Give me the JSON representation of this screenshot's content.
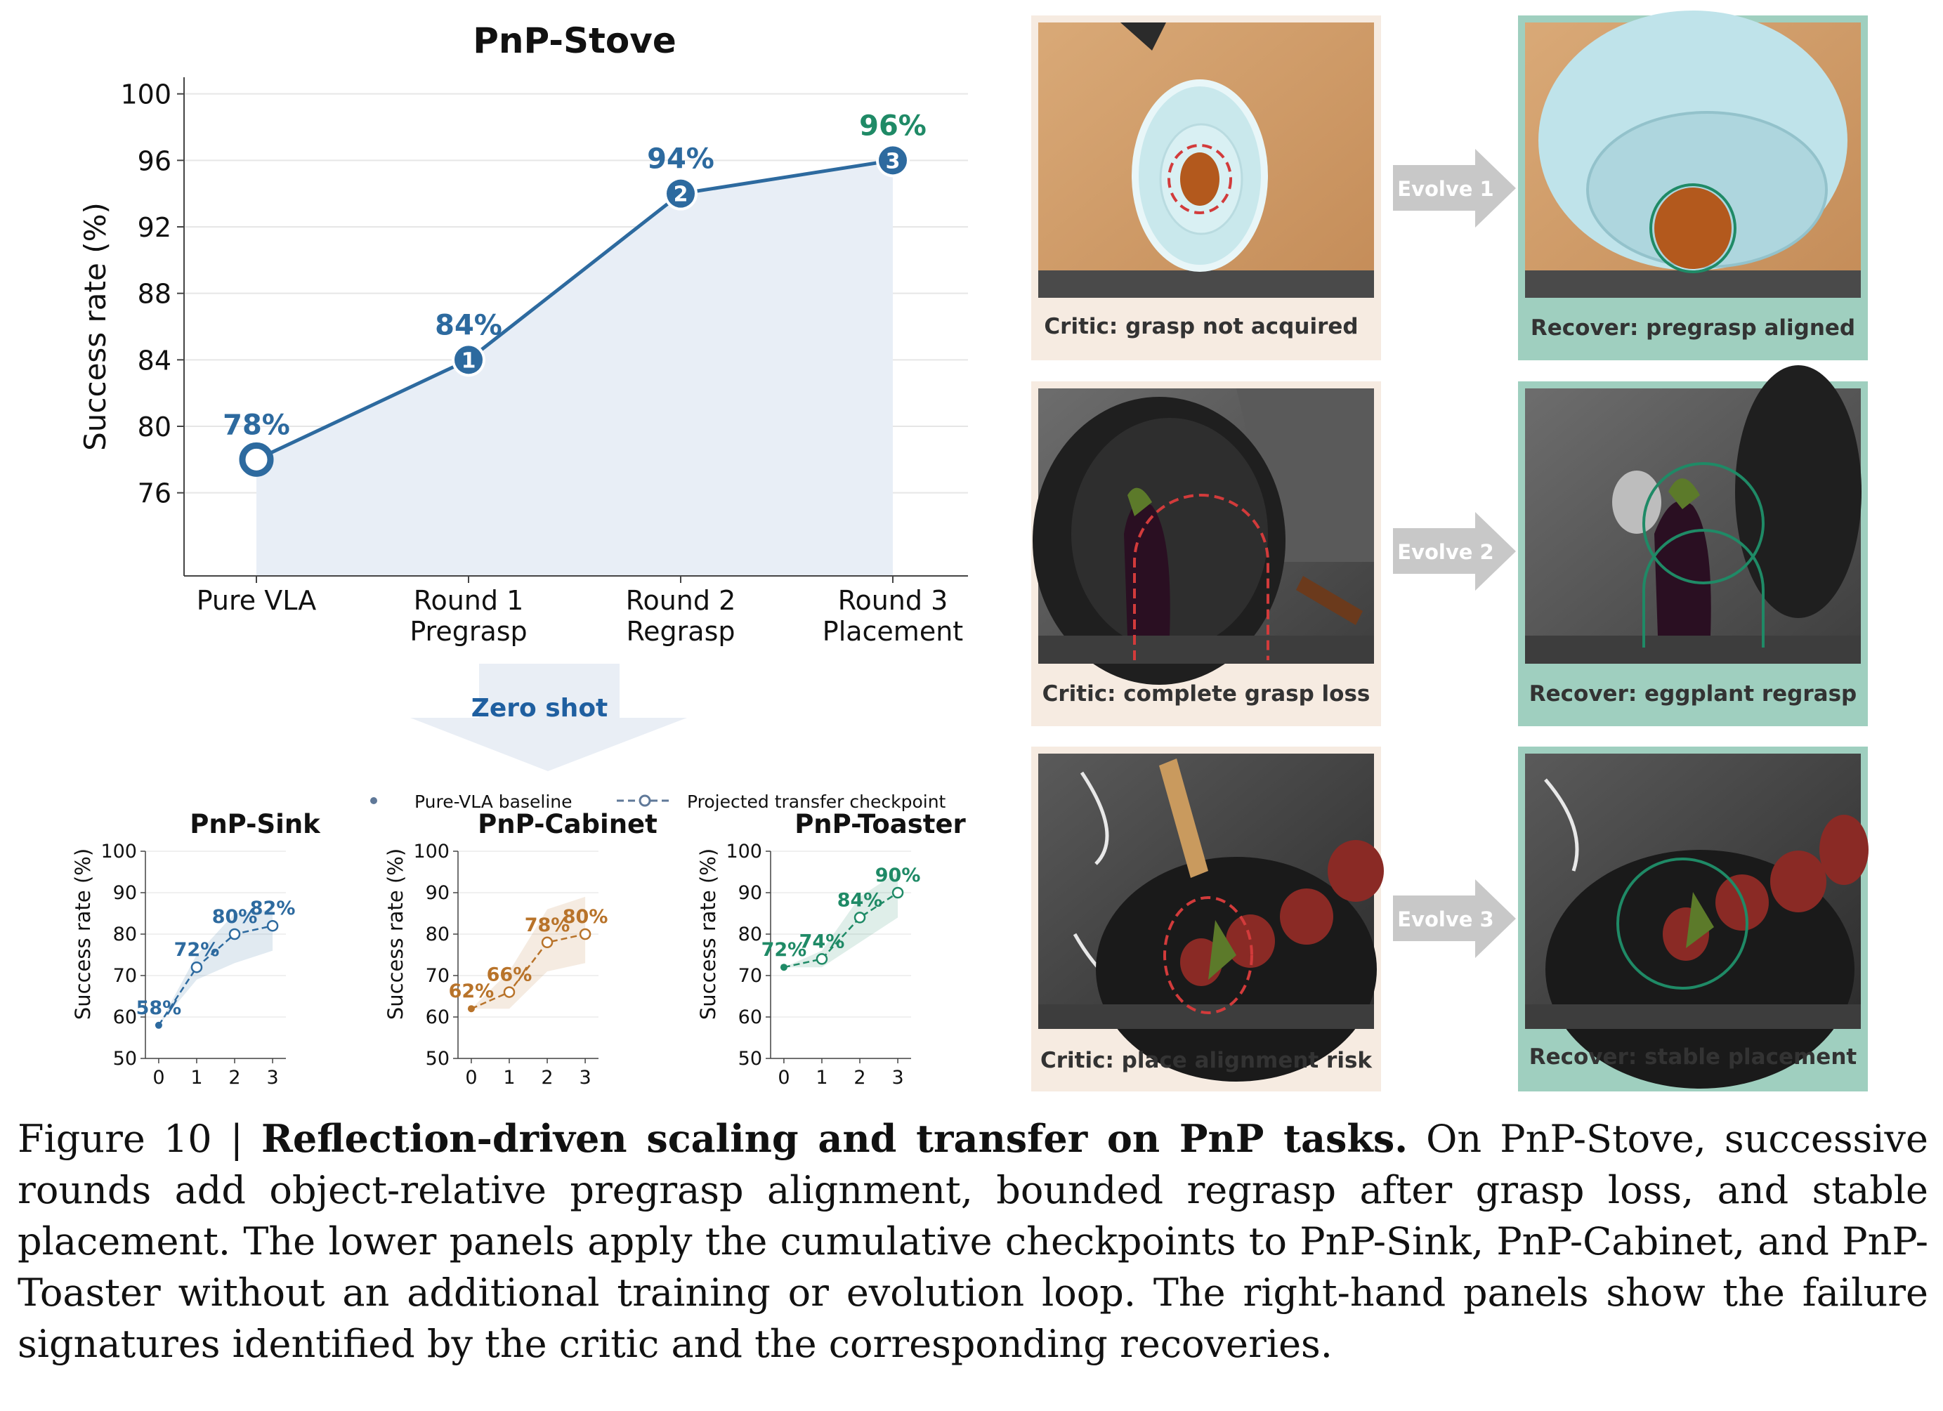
{
  "chart_data": [
    {
      "type": "line",
      "title": "PnP-Stove",
      "ylabel": "Success rate (%)",
      "categories": [
        "Pure VLA",
        "Round 1\nPregrasp",
        "Round 2\nRegrasp",
        "Round 3\nPlacement"
      ],
      "values": [
        78,
        84,
        94,
        96
      ],
      "data_labels": [
        "78%",
        "84%",
        "94%",
        "96%"
      ],
      "markers": [
        "",
        "1",
        "2",
        "3"
      ],
      "yticks": [
        76,
        80,
        84,
        88,
        92,
        96,
        100
      ],
      "ylim": [
        71,
        101
      ],
      "grid": true,
      "colors": {
        "line": "#2d6a9f",
        "highlight": "#1f8a66",
        "fill": "#e8eef6"
      }
    },
    {
      "type": "line",
      "title": "PnP-Sink",
      "ylabel": "Success rate (%)",
      "x": [
        0,
        1,
        2,
        3
      ],
      "values": [
        58,
        72,
        80,
        82
      ],
      "data_labels": [
        "58%",
        "72%",
        "80%",
        "82%"
      ],
      "band": [
        [
          58,
          58
        ],
        [
          69,
          75
        ],
        [
          73,
          85
        ],
        [
          76,
          86
        ]
      ],
      "xlim": [
        -0.35,
        3.35
      ],
      "ylim": [
        50,
        100
      ],
      "yticks": [
        50,
        60,
        70,
        80,
        90,
        100
      ],
      "color": "#2d6a9f"
    },
    {
      "type": "line",
      "title": "PnP-Cabinet",
      "ylabel": "Success rate (%)",
      "x": [
        0,
        1,
        2,
        3
      ],
      "values": [
        62,
        66,
        78,
        80
      ],
      "data_labels": [
        "62%",
        "66%",
        "78%",
        "80%"
      ],
      "band": [
        [
          62,
          62
        ],
        [
          62,
          71
        ],
        [
          71,
          86
        ],
        [
          73,
          89
        ]
      ],
      "xlim": [
        -0.35,
        3.35
      ],
      "ylim": [
        50,
        100
      ],
      "yticks": [
        50,
        60,
        70,
        80,
        90,
        100
      ],
      "color": "#b8732a"
    },
    {
      "type": "line",
      "title": "PnP-Toaster",
      "ylabel": "Success rate (%)",
      "x": [
        0,
        1,
        2,
        3
      ],
      "values": [
        72,
        74,
        84,
        90
      ],
      "data_labels": [
        "72%",
        "74%",
        "84%",
        "90%"
      ],
      "band": [
        [
          72,
          72
        ],
        [
          72,
          76
        ],
        [
          78,
          89
        ],
        [
          84,
          95
        ]
      ],
      "xlim": [
        -0.35,
        3.35
      ],
      "ylim": [
        50,
        100
      ],
      "yticks": [
        50,
        60,
        70,
        80,
        90,
        100
      ],
      "color": "#1f8a66"
    }
  ],
  "transfer": {
    "arrow_label": "Zero shot",
    "legend": [
      "Pure-VLA baseline",
      "Projected transfer checkpoint"
    ]
  },
  "panels": {
    "evolve_labels": [
      "Evolve 1",
      "Evolve 2",
      "Evolve 3"
    ],
    "critic_captions": [
      "Critic: grasp not acquired",
      "Critic: complete grasp loss",
      "Critic: place alignment risk"
    ],
    "recover_captions": [
      "Recover: pregrasp aligned",
      "Recover: eggplant regrasp",
      "Recover: stable placement"
    ],
    "colors": {
      "critic_frame": "#f6ebe1",
      "recover_frame": "#9fcfbf",
      "arrow": "#c8c8c8",
      "mark_red": "#d23b3b",
      "mark_green": "#1f8a66"
    }
  },
  "caption": {
    "label": "Figure 10 | ",
    "bold": "Reflection-driven scaling and transfer on PnP tasks.",
    "text": " On PnP-Stove, successive rounds add object-relative pregrasp alignment, bounded regrasp after grasp loss, and stable placement. The lower panels apply the cumulative checkpoints to PnP-Sink, PnP-Cabinet, and PnP-Toaster without an additional training or evolution loop. The right-hand panels show the failure signatures identified by the critic and the corresponding recoveries."
  }
}
